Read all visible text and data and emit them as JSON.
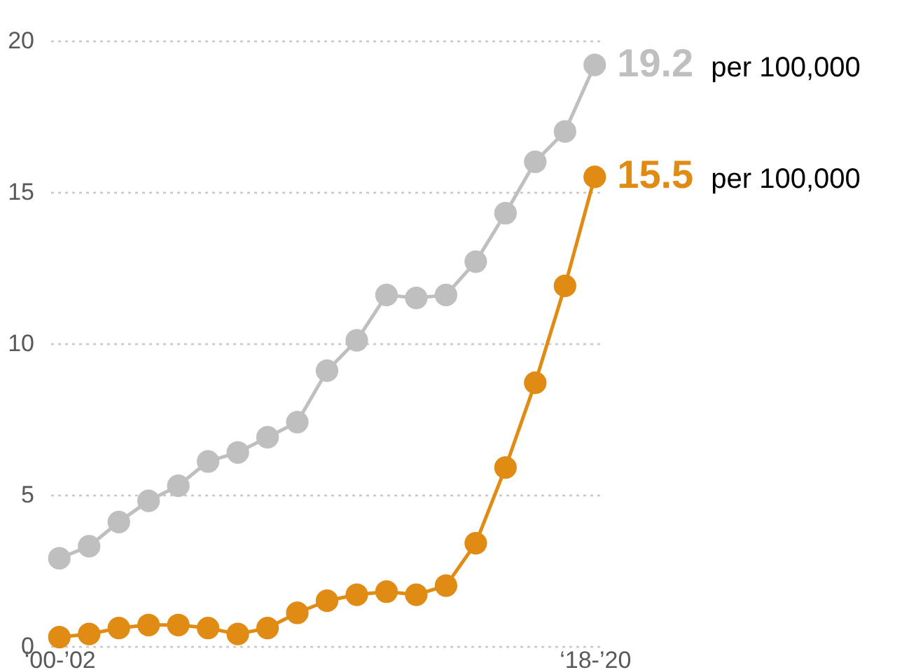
{
  "chart_data": {
    "type": "line",
    "categories": [
      "‘00-’02",
      null,
      null,
      null,
      null,
      null,
      null,
      null,
      null,
      null,
      null,
      null,
      null,
      null,
      null,
      null,
      null,
      null,
      "‘18-’20"
    ],
    "series": [
      {
        "color": "#bfbfbf",
        "values": [
          2.9,
          3.3,
          4.1,
          4.8,
          5.3,
          6.1,
          6.4,
          6.9,
          7.4,
          9.1,
          10.1,
          11.6,
          11.5,
          11.6,
          12.7,
          14.3,
          16.0,
          17.0,
          19.2
        ],
        "value_labels": [
          null,
          null,
          null,
          null,
          null,
          null,
          null,
          null,
          null,
          null,
          null,
          null,
          null,
          null,
          null,
          null,
          null,
          null,
          "19.2"
        ]
      },
      {
        "color": "#e08c14",
        "values": [
          0.3,
          0.4,
          0.6,
          0.7,
          0.7,
          0.6,
          0.4,
          0.6,
          1.1,
          1.5,
          1.7,
          1.8,
          1.7,
          2.0,
          3.4,
          5.9,
          8.7,
          11.9,
          15.5
        ],
        "value_labels": [
          null,
          null,
          null,
          null,
          null,
          null,
          null,
          null,
          null,
          null,
          null,
          null,
          null,
          null,
          null,
          null,
          null,
          null,
          "15.5"
        ]
      }
    ],
    "annotations": [
      "per 100,000",
      "per 100,000"
    ],
    "ylim": [
      0,
      20
    ],
    "yticks": [
      0,
      5,
      10,
      15,
      20
    ],
    "grid": "y",
    "marker": "circle",
    "line_style": "solid"
  }
}
